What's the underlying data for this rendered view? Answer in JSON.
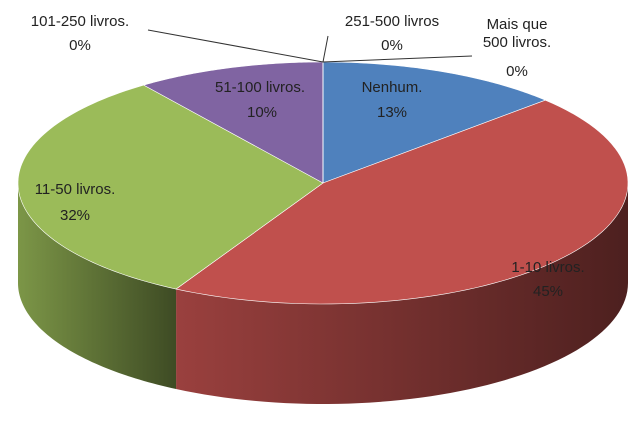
{
  "chart_data": {
    "type": "pie",
    "categories": [
      "Nenhum.",
      "1-10 livros.",
      "11-50 livros.",
      "51-100 livros.",
      "101-250 livros.",
      "251-500 livros",
      "Mais que 500 livros."
    ],
    "values": [
      13,
      45,
      32,
      10,
      0,
      0,
      0
    ],
    "value_labels": [
      "13%",
      "45%",
      "32%",
      "10%",
      "0%",
      "0%",
      "0%"
    ],
    "colors": [
      "#4f81bd",
      "#c0504d",
      "#9bbb59",
      "#8064a2",
      "#4bacc6",
      "#f79646",
      "#2c4d75"
    ]
  }
}
